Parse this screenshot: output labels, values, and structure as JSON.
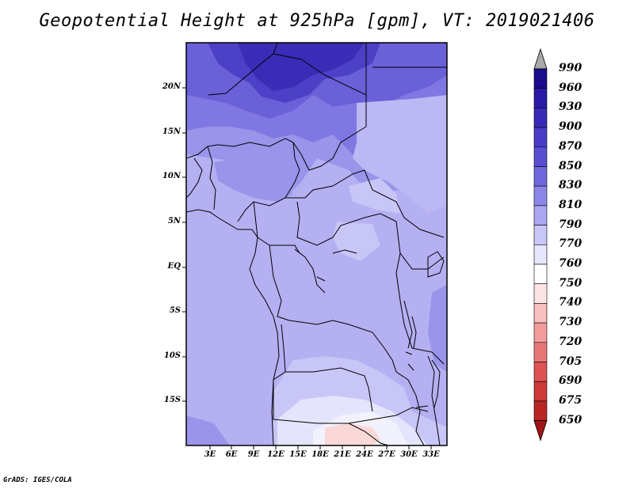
{
  "title": "Geopotential Height at 925hPa [gpm], VT: 2019021406",
  "credit": "GrADS: IGES/COLA",
  "lat_labels": [
    "20N",
    "15N",
    "10N",
    "5N",
    "EQ",
    "5S",
    "10S",
    "15S"
  ],
  "lon_labels": [
    "3E",
    "6E",
    "9E",
    "12E",
    "15E",
    "18E",
    "21E",
    "24E",
    "27E",
    "30E",
    "33E"
  ],
  "colorbar": {
    "levels": [
      "990",
      "960",
      "930",
      "900",
      "870",
      "850",
      "830",
      "810",
      "790",
      "770",
      "760",
      "750",
      "740",
      "730",
      "720",
      "705",
      "690",
      "675",
      "650"
    ],
    "colors": [
      "#1a0a8c",
      "#2a1aa6",
      "#3a2ab8",
      "#4a3cc6",
      "#5a4ed2",
      "#6e66dc",
      "#8c86e6",
      "#aaa6f0",
      "#c8c6f6",
      "#e6e6fc",
      "#ffffff",
      "#fde4e4",
      "#f9c0c0",
      "#f29c9c",
      "#e87878",
      "#de5454",
      "#cc3a3a",
      "#b82626",
      "#a01414"
    ],
    "top_arrow_color": "#a8a8a8"
  }
}
